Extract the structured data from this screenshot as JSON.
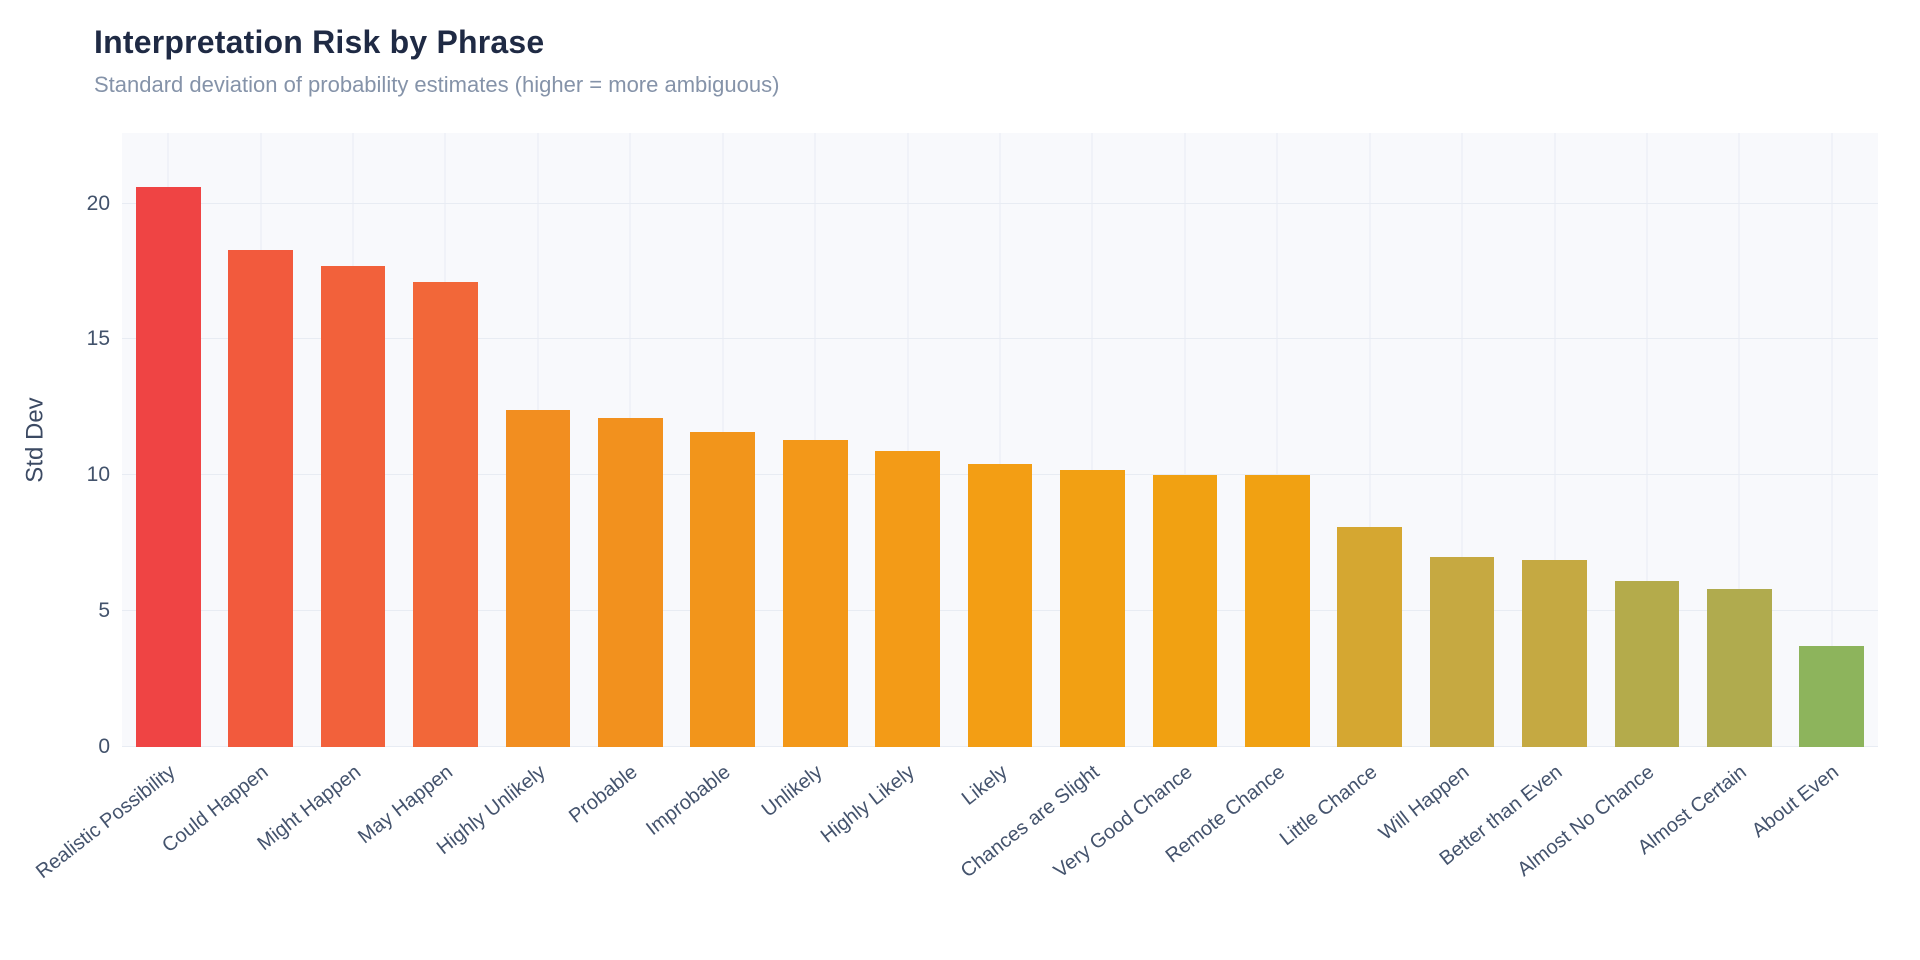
{
  "header": {
    "title": "Interpretation Risk by Phrase",
    "subtitle": "Standard deviation of probability estimates (higher = more ambiguous)"
  },
  "chart_data": {
    "type": "bar",
    "title": "Interpretation Risk by Phrase",
    "subtitle": "Standard deviation of probability estimates (higher = more ambiguous)",
    "xlabel": "",
    "ylabel": "Std Dev",
    "ylim": [
      0,
      22.6
    ],
    "yticks": [
      0,
      5,
      10,
      15,
      20
    ],
    "grid": true,
    "legend": false,
    "x_tick_rotation_deg": -38,
    "categories": [
      "Realistic Possibility",
      "Could Happen",
      "Might Happen",
      "May Happen",
      "Highly Unlikely",
      "Probable",
      "Improbable",
      "Unlikely",
      "Highly Likely",
      "Likely",
      "Chances are Slight",
      "Very Good Chance",
      "Remote Chance",
      "Little Chance",
      "Will Happen",
      "Better than Even",
      "Almost No Chance",
      "Almost Certain",
      "About Even"
    ],
    "values": [
      20.6,
      18.3,
      17.7,
      17.1,
      12.4,
      12.1,
      11.6,
      11.3,
      10.9,
      10.4,
      10.2,
      10.0,
      10.0,
      8.1,
      7.0,
      6.9,
      6.1,
      5.8,
      3.7
    ],
    "bar_colors": [
      "#ef4444",
      "#f25a3d",
      "#f2613b",
      "#f26739",
      "#f28e20",
      "#f2911e",
      "#f2951b",
      "#f39819",
      "#f39b17",
      "#f39e14",
      "#f2a013",
      "#f1a112",
      "#f1a112",
      "#d5a731",
      "#c6a941",
      "#c5a942",
      "#b4ab4b",
      "#b0ab4e",
      "#8db45c"
    ]
  },
  "theme": {
    "background": "#ffffff",
    "plot_background": "#f8f9fc",
    "grid_color": "#e8ecf3",
    "title_color": "#1f2a44",
    "subtitle_color": "#8593a9",
    "tick_color": "#42526b"
  }
}
